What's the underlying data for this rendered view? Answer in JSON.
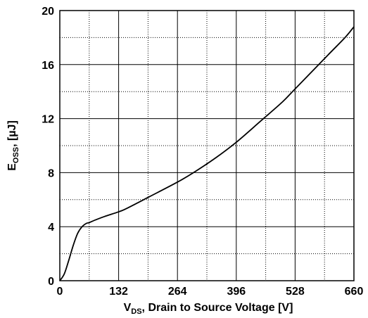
{
  "chart_data": {
    "type": "line",
    "title": "",
    "xlabel": {
      "main": "V",
      "sub": "DS",
      "rest": ", Drain to Source Voltage [V]"
    },
    "ylabel": {
      "main": "E",
      "sub": "OSS",
      "rest": ", [µJ]"
    },
    "xlim": [
      0,
      660
    ],
    "ylim": [
      0,
      20
    ],
    "xticks": [
      0,
      132,
      264,
      396,
      528,
      660
    ],
    "yticks": [
      0,
      4,
      8,
      12,
      16,
      20
    ],
    "x_tick_labels": [
      "0",
      "132",
      "264",
      "396",
      "528",
      "660"
    ],
    "y_tick_labels": [
      "0",
      "4",
      "8",
      "12",
      "16",
      "20"
    ],
    "grid": true,
    "minor_grid": true,
    "series": [
      {
        "x": [
          0,
          10,
          20,
          30,
          40,
          50,
          60,
          66,
          80,
          100,
          132,
          150,
          200,
          264,
          300,
          350,
          396,
          450,
          500,
          528,
          600,
          640,
          660
        ],
        "y": [
          0,
          0.5,
          1.5,
          2.6,
          3.5,
          4.0,
          4.25,
          4.3,
          4.5,
          4.75,
          5.1,
          5.35,
          6.2,
          7.3,
          8.0,
          9.1,
          10.25,
          11.8,
          13.25,
          14.2,
          16.65,
          18.0,
          18.8
        ]
      }
    ]
  }
}
